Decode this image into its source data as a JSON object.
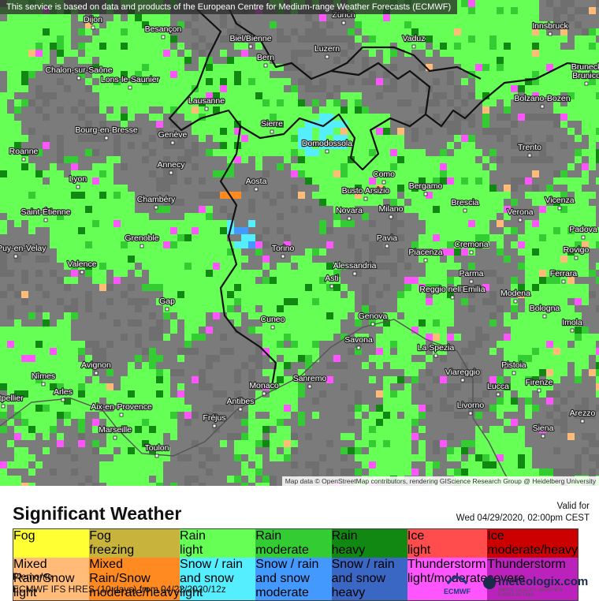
{
  "banner": "This service is based on data and products of the European Centre for Medium-range Weather Forecasts (ECMWF)",
  "cities": [
    "Dijon",
    "Besançon",
    "Biel/Bienne",
    "Zürich",
    "Luzern",
    "Vaduz",
    "Innsbruck",
    "Bern",
    "Chalon-sur-Saône",
    "Lons-le-Saunier",
    "Bruneck",
    "Brunico",
    "Bolzano-Bozen",
    "Lausanne",
    "Sierre",
    "Domodossola",
    "Bourg-en-Bresse",
    "Genève",
    "Roanne",
    "Trento",
    "Annecy",
    "Lyon",
    "Aosta",
    "Como",
    "Busto Arsizio",
    "Bergamo",
    "Chambéry",
    "Vicenza",
    "Saint-Étienne",
    "Novara",
    "Milano",
    "Brescia",
    "Verona",
    "Padova",
    "Grenoble",
    "Pavia",
    "Cremona",
    "Le Puy-en-Velay",
    "Torino",
    "Piacenza",
    "Rovigo",
    "Valence",
    "Alessandria",
    "Asti",
    "Parma",
    "Ferrara",
    "Reggio nell'Emilia",
    "Modena",
    "Gap",
    "Bologna",
    "Genova",
    "Cuneo",
    "Imola",
    "Savona",
    "La Spezia",
    "Avignon",
    "Pistoia",
    "Nîmes",
    "Sanremo",
    "Viareggio",
    "Arles",
    "Monaco",
    "Lucca",
    "Firenze",
    "Montpellier",
    "Antibes",
    "Aix-en-Provence",
    "Livorno",
    "Arezzo",
    "Fréjus",
    "Marseille",
    "Siena",
    "Toulon"
  ],
  "attribution": "Map data © OpenStreetMap contributors, rendering GIScience Research Group @ Heidelberg University",
  "legend": {
    "title": "Significant Weather",
    "valid_label": "Valid for",
    "valid_time": "Wed 04/29/2020, 02:00pm CEST",
    "items": [
      {
        "title": "Fog",
        "color": "#ffff33"
      },
      {
        "title": "Fog",
        "sub": "freezing",
        "color": "#c8b43c"
      },
      {
        "title": "Rain",
        "sub": "light",
        "color": "#66ff55"
      },
      {
        "title": "Rain",
        "sub": "moderate",
        "color": "#33cc33"
      },
      {
        "title": "Rain",
        "sub": "heavy",
        "color": "#118811"
      },
      {
        "title": "Ice",
        "sub": "light",
        "color": "#ff4d4d"
      },
      {
        "title": "Ice",
        "sub": "moderate/heavy",
        "color": "#cc0000"
      },
      {
        "title": "Mixed Rain/Snow",
        "sub": "light",
        "color": "#ffbb77"
      },
      {
        "title": "Mixed Rain/Snow",
        "sub": "moderate/heavy",
        "color": "#ff8a22"
      },
      {
        "title": "Snow",
        "note": "/ rain and snow",
        "sub": "light",
        "color": "#55eeff"
      },
      {
        "title": "Snow",
        "note": "/ rain and snow",
        "sub": "moderate",
        "color": "#4499ff"
      },
      {
        "title": "Snow",
        "note": "/ rain and snow",
        "sub": "heavy",
        "color": "#3a66c4"
      },
      {
        "title": "Thunderstorm",
        "sub": "light/moderate",
        "color": "#ff55ff"
      },
      {
        "title": "Thunderstorm",
        "sub": "severe",
        "color": "#bb22bb"
      }
    ]
  },
  "footer": {
    "region": "Piemonte",
    "model": "ECMWF IFS HRES (10 days) from 04/22/2020/12z",
    "ecmwf_logo": "ECMWF",
    "brand": "meteologix.com",
    "brand_tagline": "SWISS QUALITY WEATHER FORECASTING"
  }
}
